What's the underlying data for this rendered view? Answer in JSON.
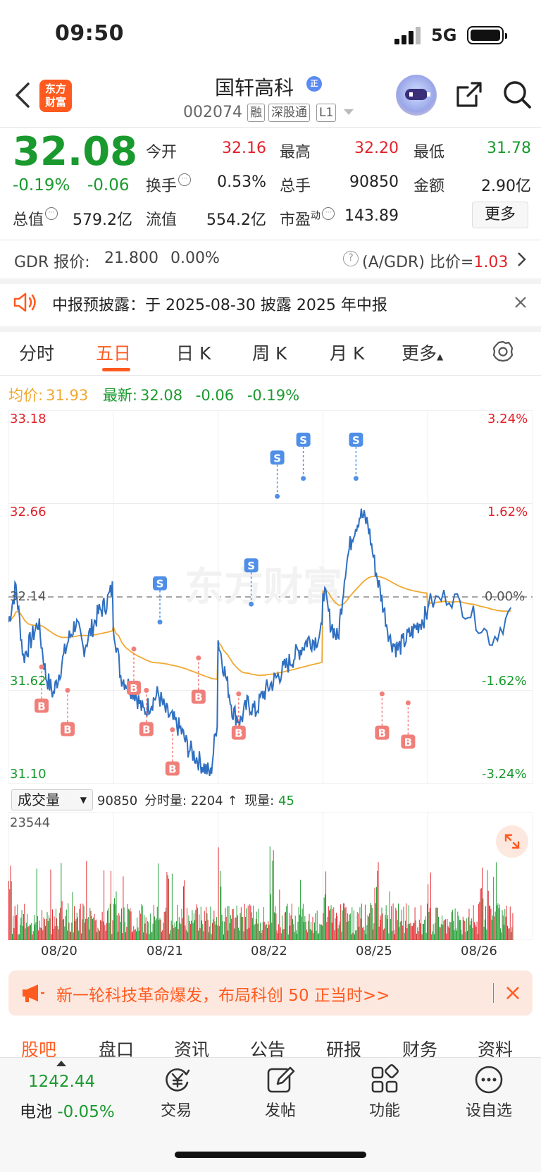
{
  "status_bar": {
    "time": "09:50",
    "network": "5G"
  },
  "header": {
    "logo_text": "东方财富",
    "stock_name": "国轩高科",
    "name_badge": "正",
    "stock_code": "002074",
    "tags": [
      "融",
      "深股通",
      "L1"
    ],
    "icons": [
      "back-icon",
      "robot-assistant-icon",
      "share-icon",
      "search-icon"
    ]
  },
  "quote": {
    "price": "32.08",
    "change_pct": "-0.19%",
    "change": "-0.06",
    "open_label": "今开",
    "open": "32.16",
    "high_label": "最高",
    "high": "32.20",
    "low_label": "最低",
    "low": "31.78",
    "turnover_label": "换手",
    "turnover": "0.53%",
    "volume_label": "总手",
    "volume": "90850",
    "amount_label": "金额",
    "amount": "2.90亿",
    "mktcap_label": "总值",
    "mktcap": "579.2亿",
    "float_label": "流值",
    "float_cap": "554.2亿",
    "pe_label": "市盈",
    "pe_sup": "动",
    "pe": "143.89",
    "more_label": "更多"
  },
  "gdr": {
    "label": "GDR 报价:",
    "price": "21.800",
    "pct": "0.00%",
    "ratio_label": "(A/GDR) 比价=",
    "ratio": "1.03"
  },
  "notice": {
    "text": "中报预披露：于 2025-08-30 披露 2025 年中报"
  },
  "chart_tabs": {
    "items": [
      "分时",
      "五日",
      "日 K",
      "周 K",
      "月 K",
      "更多"
    ],
    "active": "五日"
  },
  "chart_legend": {
    "avg_label": "均价:",
    "avg": "31.93",
    "latest_label": "最新:",
    "latest": "32.08",
    "chg": "-0.06",
    "pct": "-0.19%"
  },
  "colors": {
    "accent": "#ff5a1f",
    "up": "#e2232a",
    "down": "#1a9a2e",
    "price_line": "#2f6fc1",
    "avg_line": "#f0a830",
    "buy": "#f07f7a",
    "sell": "#4f8fe8"
  },
  "chart_data": {
    "type": "line",
    "categories": [
      "08/20",
      "08/21",
      "08/22",
      "08/25",
      "08/26"
    ],
    "y_left_ticks": [
      "33.18",
      "32.66",
      "32.14",
      "31.62",
      "31.10"
    ],
    "y_right_ticks": [
      "3.24%",
      "1.62%",
      "0.00%",
      "-1.62%",
      "-3.24%"
    ],
    "ylim": [
      31.1,
      33.18
    ],
    "prev_close": 32.14,
    "series": [],
    "day_points": [
      {
        "day": "08/20",
        "values": [
          32.0,
          32.2,
          31.8,
          31.9,
          32.0,
          31.7,
          31.6,
          31.75,
          31.9,
          32.0,
          31.85,
          31.95,
          32.05,
          32.1,
          32.2
        ]
      },
      {
        "day": "08/21",
        "values": [
          32.0,
          31.7,
          31.65,
          31.6,
          31.5,
          31.55,
          31.6,
          31.5,
          31.45,
          31.4,
          31.3,
          31.25,
          31.2,
          31.15,
          31.5
        ]
      },
      {
        "day": "08/22",
        "values": [
          31.9,
          31.7,
          31.5,
          31.45,
          31.55,
          31.5,
          31.6,
          31.65,
          31.7,
          31.75,
          31.8,
          31.85,
          31.9,
          31.9,
          31.95
        ]
      },
      {
        "day": "08/25",
        "values": [
          32.2,
          32.0,
          31.9,
          32.3,
          32.5,
          32.6,
          32.55,
          32.3,
          32.1,
          31.9,
          31.85,
          31.9,
          31.95,
          32.0,
          32.05
        ]
      },
      {
        "day": "08/26",
        "values": [
          32.1,
          32.15,
          32.05,
          31.9,
          32.08
        ]
      }
    ],
    "trade_markers": [
      {
        "type": "B",
        "day": "08/20",
        "value": 31.75
      },
      {
        "type": "B",
        "day": "08/20",
        "value": 31.62
      },
      {
        "type": "B",
        "day": "08/21",
        "value": 31.62
      },
      {
        "type": "B",
        "day": "08/21",
        "value": 31.4
      },
      {
        "type": "B",
        "day": "08/21",
        "value": 31.8
      },
      {
        "type": "B",
        "day": "08/21",
        "value": 31.85
      },
      {
        "type": "S",
        "day": "08/21",
        "value": 32.0
      },
      {
        "type": "S",
        "day": "08/22",
        "value": 32.1
      },
      {
        "type": "S",
        "day": "08/22",
        "value": 32.7
      },
      {
        "type": "S",
        "day": "08/22",
        "value": 32.8
      },
      {
        "type": "S",
        "day": "08/25",
        "value": 32.8
      },
      {
        "type": "B",
        "day": "08/22",
        "value": 31.6
      },
      {
        "type": "B",
        "day": "08/25",
        "value": 31.6
      },
      {
        "type": "B",
        "day": "08/25",
        "value": 31.55
      }
    ]
  },
  "volume": {
    "selector": "成交量",
    "total": "90850",
    "minute_label": "分时量:",
    "minute": "2204",
    "arrow": "↑",
    "now_label": "现量:",
    "now": "45",
    "max_tick": "23544"
  },
  "promo": {
    "text": "新一轮科技革命爆发，布局科创 50 正当时>>"
  },
  "bottom_tabs": [
    "股吧",
    "盘口",
    "资讯",
    "公告",
    "研报",
    "财务",
    "资料"
  ],
  "dock": {
    "index_value": "1242.44",
    "index_name": "电池",
    "index_pct": "-0.05%",
    "items": [
      {
        "label": "交易",
        "icon": "trade-yen-icon"
      },
      {
        "label": "发帖",
        "icon": "edit-post-icon"
      },
      {
        "label": "功能",
        "icon": "grid-apps-icon"
      },
      {
        "label": "设自选",
        "icon": "more-dots-icon"
      }
    ]
  },
  "watermark": "东方财富"
}
